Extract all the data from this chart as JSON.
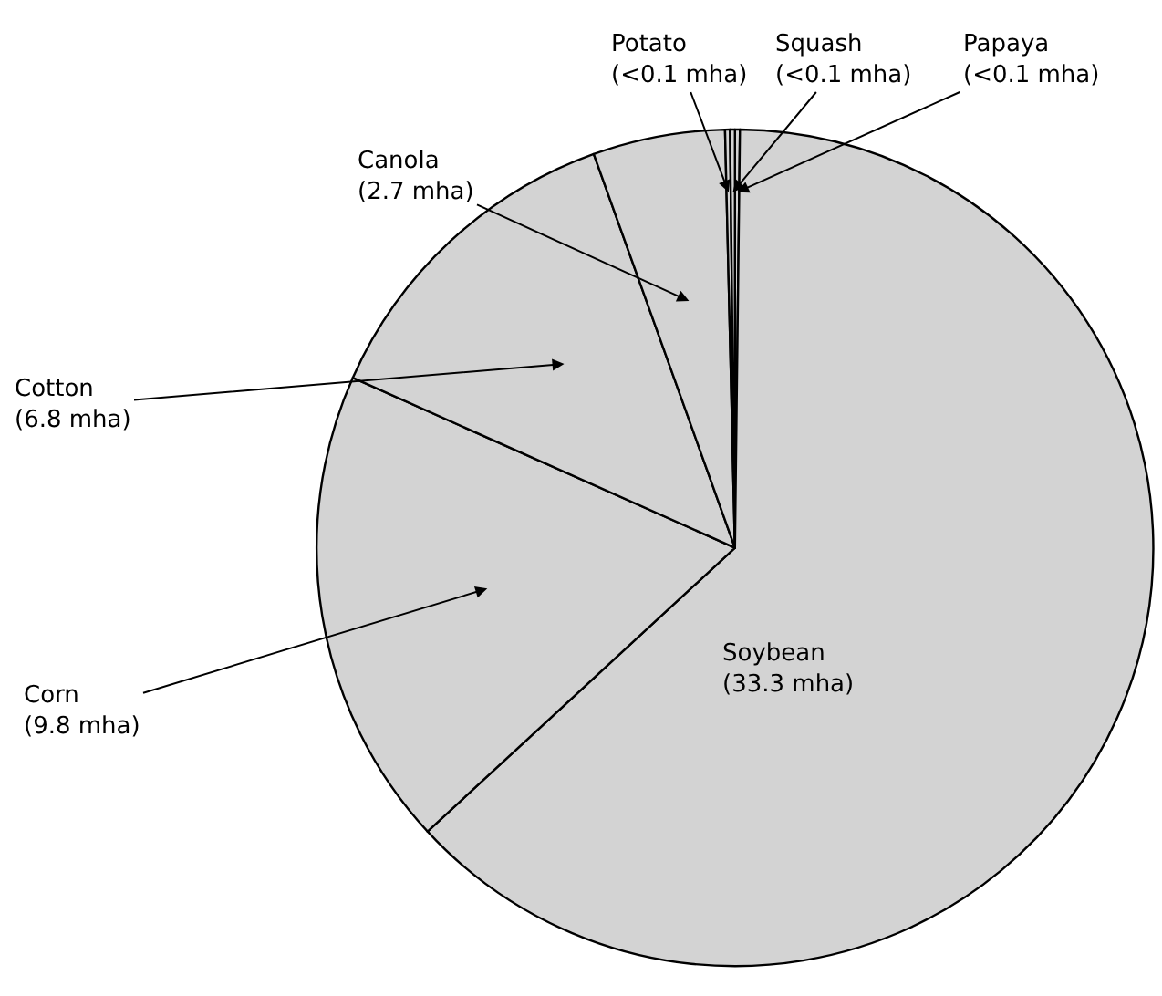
{
  "chart_data": {
    "type": "pie",
    "categories": [
      "Papaya",
      "Soybean",
      "Corn",
      "Cotton",
      "Canola",
      "Potato",
      "Squash"
    ],
    "values": [
      0.1,
      33.3,
      9.8,
      6.8,
      2.7,
      0.1,
      0.1
    ],
    "value_labels": [
      "(<0.1 mha)",
      "(33.3 mha)",
      "(9.8 mha)",
      "(6.8 mha)",
      "(2.7 mha)",
      "(<0.1 mha)",
      "(<0.1 mha)"
    ],
    "colors": [
      "#d3d3d3",
      "#d3d3d3",
      "#d3d3d3",
      "#d3d3d3",
      "#d3d3d3",
      "#d3d3d3",
      "#d3d3d3"
    ],
    "legend": false
  }
}
